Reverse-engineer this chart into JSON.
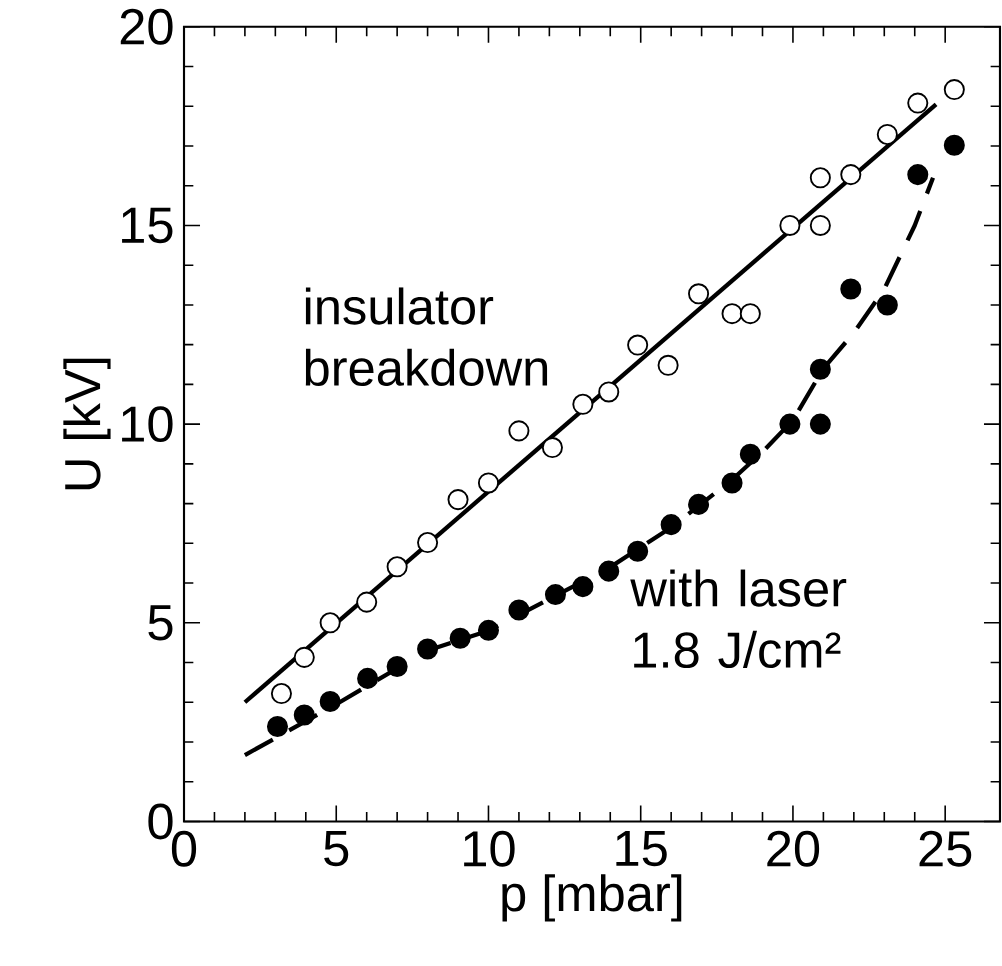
{
  "chart_data": {
    "type": "scatter",
    "xlabel": "p [mbar]",
    "ylabel": "U [kV]",
    "xlim": [
      0,
      26.8
    ],
    "ylim": [
      0,
      20
    ],
    "xticks": [
      0,
      5,
      10,
      15,
      20,
      25
    ],
    "yticks": [
      0,
      5,
      10,
      15,
      20
    ],
    "grid": false,
    "annotations": [
      "insulator breakdown",
      "with laser 1.8 J/cm²"
    ],
    "series": [
      {
        "color": "#000000",
        "marker": "circle",
        "x": [
          3.2,
          3.95,
          4.8,
          6.0,
          7.0,
          8.0,
          9.0,
          10.0,
          11.0,
          12.1,
          13.1,
          13.95,
          14.9,
          15.9,
          16.9,
          18.0,
          18.6,
          19.9,
          20.9,
          20.9,
          21.9,
          23.1,
          24.1,
          25.3
        ],
        "values": [
          3.22,
          4.13,
          5.0,
          5.52,
          6.41,
          7.02,
          8.1,
          8.52,
          9.83,
          9.41,
          10.5,
          10.81,
          11.99,
          11.48,
          13.28,
          12.78,
          12.78,
          15.0,
          15.0,
          16.2,
          16.28,
          17.29,
          18.08,
          18.42
        ]
      },
      {
        "color": "#000000",
        "marker": "circle",
        "x": [
          3.07,
          3.95,
          4.8,
          6.03,
          7.0,
          8.0,
          9.07,
          10.0,
          11.0,
          12.2,
          13.1,
          13.95,
          14.9,
          16.0,
          16.9,
          18.0,
          18.6,
          19.9,
          20.9,
          20.9,
          21.9,
          23.1,
          24.1,
          25.3
        ],
        "values": [
          2.39,
          2.68,
          3.02,
          3.6,
          3.9,
          4.34,
          4.61,
          4.81,
          5.32,
          5.71,
          5.91,
          6.3,
          6.8,
          7.47,
          7.98,
          8.52,
          9.24,
          10.0,
          10.0,
          11.38,
          13.4,
          13.0,
          16.28,
          17.02
        ]
      },
      {
        "type": "line",
        "color": "#000000",
        "line_style": "solid",
        "marker": "none",
        "x": [
          2.0,
          24.7
        ],
        "values": [
          3.0,
          18.05
        ]
      },
      {
        "type": "line",
        "color": "#000000",
        "line_style": "dashed",
        "marker": "none",
        "x": [
          2.0,
          5.0,
          8.0,
          10.0,
          12.0,
          14.0,
          16.0,
          18.0,
          19.0,
          20.0,
          21.0,
          22.0,
          23.0,
          24.0,
          24.6
        ],
        "values": [
          1.67,
          2.95,
          4.3,
          4.8,
          5.6,
          6.4,
          7.4,
          8.6,
          9.3,
          10.1,
          11.4,
          12.3,
          13.4,
          15.0,
          16.2
        ]
      }
    ]
  }
}
